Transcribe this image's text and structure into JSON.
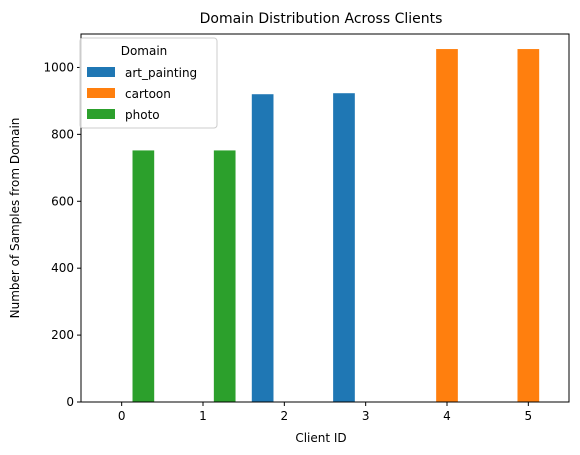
{
  "chart_data": {
    "type": "bar",
    "title": "Domain Distribution Across Clients",
    "xlabel": "Client ID",
    "ylabel": "Number of Samples from Domain",
    "categories": [
      "0",
      "1",
      "2",
      "3",
      "4",
      "5"
    ],
    "series": [
      {
        "name": "art_painting",
        "color": "#1f77b4",
        "values": [
          0,
          0,
          920,
          923,
          0,
          0
        ]
      },
      {
        "name": "cartoon",
        "color": "#ff7f0e",
        "values": [
          0,
          0,
          0,
          0,
          1055,
          1055
        ]
      },
      {
        "name": "photo",
        "color": "#2ca02c",
        "values": [
          752,
          752,
          0,
          0,
          0,
          0
        ]
      }
    ],
    "ylim": [
      0,
      1100
    ],
    "yticks": [
      0,
      200,
      400,
      600,
      800,
      1000
    ],
    "legend": {
      "title": "Domain",
      "position": "top-left"
    },
    "grid": false
  }
}
